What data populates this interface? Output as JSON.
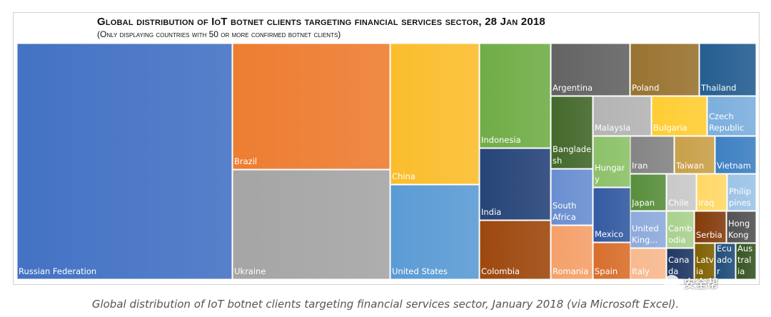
{
  "chart_data": {
    "type": "treemap",
    "title": "Global distribution of IoT botnet clients targeting financial services sector, 28 Jan 2018",
    "subtitle": "(Only displaying countries with 50 or more confirmed botnet clients)",
    "items": [
      {
        "name": "Russian Federation",
        "label": "Russian Federation",
        "color": "#4472c4"
      },
      {
        "name": "Brazil",
        "label": "Brazil",
        "color": "#ed7d31"
      },
      {
        "name": "Ukraine",
        "label": "Ukraine",
        "color": "#a5a5a5"
      },
      {
        "name": "China",
        "label": "China",
        "color": "#fbbd2c"
      },
      {
        "name": "United States",
        "label": "United States",
        "color": "#5b9bd5"
      },
      {
        "name": "Indonesia",
        "label": "Indonesia",
        "color": "#70ad47"
      },
      {
        "name": "India",
        "label": "India",
        "color": "#264478"
      },
      {
        "name": "Colombia",
        "label": "Colombia",
        "color": "#9e480e"
      },
      {
        "name": "Argentina",
        "label": "Argentina",
        "color": "#636363"
      },
      {
        "name": "Poland",
        "label": "Poland",
        "color": "#997330"
      },
      {
        "name": "Thailand",
        "label": "Thailand",
        "color": "#255e91"
      },
      {
        "name": "Bangladesh",
        "label": "Banglade\nsh",
        "color": "#43682b"
      },
      {
        "name": "Malaysia",
        "label": "Malaysia",
        "color": "#b4b4b4"
      },
      {
        "name": "Bulgaria",
        "label": "Bulgaria",
        "color": "#ffcd33"
      },
      {
        "name": "Czech Republic",
        "label": "Czech\nRepublic",
        "color": "#7cafdd"
      },
      {
        "name": "South Africa",
        "label": "South\nAfrica",
        "color": "#698ed0"
      },
      {
        "name": "Hungary",
        "label": "Hungar\ny",
        "color": "#8cc168"
      },
      {
        "name": "Iran",
        "label": "Iran",
        "color": "#848484"
      },
      {
        "name": "Taiwan",
        "label": "Taiwan",
        "color": "#c9a04a"
      },
      {
        "name": "Vietnam",
        "label": "Vietnam",
        "color": "#3d80c2"
      },
      {
        "name": "Japan",
        "label": "Japan",
        "color": "#578e3b"
      },
      {
        "name": "Chile",
        "label": "Chile",
        "color": "#c9c9c9"
      },
      {
        "name": "Iraq",
        "label": "Iraq",
        "color": "#ffd866"
      },
      {
        "name": "Philippines",
        "label": "Philip\npines",
        "color": "#9dc3e6"
      },
      {
        "name": "Mexico",
        "label": "Mexico",
        "color": "#335aa1"
      },
      {
        "name": "United Kingdom",
        "label": "United\nKing...",
        "color": "#8eaadb"
      },
      {
        "name": "Cambodia",
        "label": "Camb\nodia",
        "color": "#a9d18e"
      },
      {
        "name": "Serbia",
        "label": "Serbia",
        "color": "#843c0c"
      },
      {
        "name": "Hong Kong",
        "label": "Hong\nKong",
        "color": "#525252"
      },
      {
        "name": "Romania",
        "label": "Romania",
        "color": "#f4a06a"
      },
      {
        "name": "Spain",
        "label": "Spain",
        "color": "#d86f2c"
      },
      {
        "name": "Italy",
        "label": "Italy",
        "color": "#f8b98f"
      },
      {
        "name": "Canada",
        "label": "Cana\nda",
        "color": "#203864"
      },
      {
        "name": "Latvia",
        "label": "Latv\nia",
        "color": "#7f6000"
      },
      {
        "name": "Ecuador",
        "label": "Ecu\nado\nr",
        "color": "#1f4e79"
      },
      {
        "name": "Australia",
        "label": "Aus\ntral\nia",
        "color": "#375623"
      }
    ]
  },
  "caption": "Global distribution of IoT botnet clients targeting financial services sector, January 2018 (via Microsoft Excel).",
  "watermark": "安全帮"
}
